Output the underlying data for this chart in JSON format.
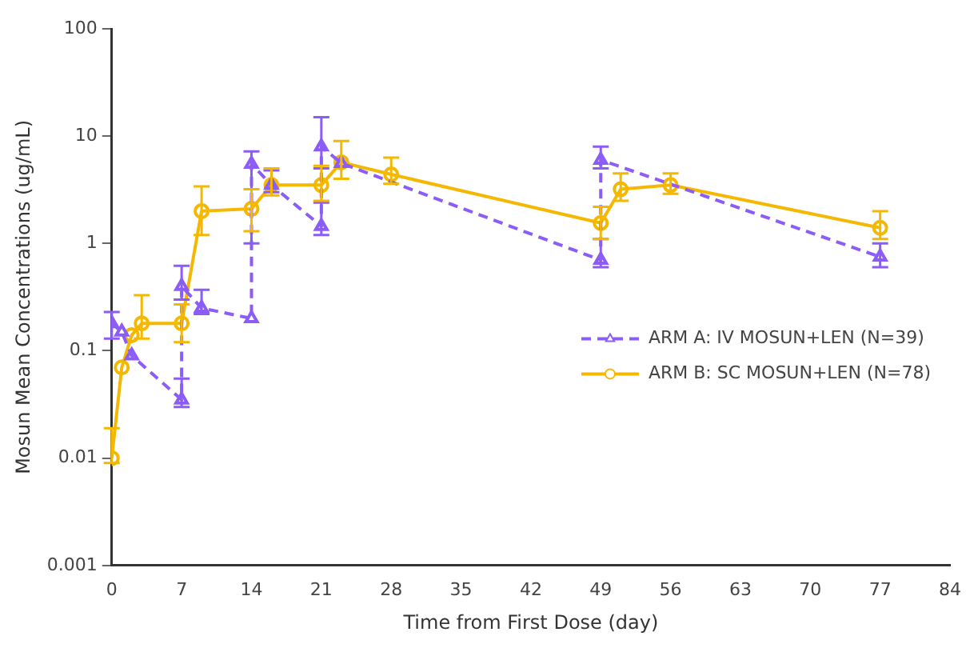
{
  "chart_data": {
    "type": "line",
    "xlabel": "Time from First Dose (day)",
    "ylabel": "Mosun Mean Concentrations (ug/mL)",
    "log": "y",
    "xlim": [
      0,
      84
    ],
    "xticks": [
      0,
      7,
      14,
      21,
      28,
      35,
      42,
      49,
      56,
      63,
      70,
      77,
      84
    ],
    "ylim": [
      0.001,
      100
    ],
    "yticks": [
      0.001,
      0.01,
      0.1,
      1,
      10,
      100
    ],
    "grid": false,
    "legend": "right",
    "series": [
      {
        "name": "ARM A: IV MOSUN+LEN (N=39)",
        "color": "#8b5cf6",
        "marker": "triangle",
        "line_style": "dashed",
        "x": [
          0,
          1,
          2,
          7,
          7,
          9,
          14,
          14,
          16,
          21,
          21,
          23,
          49,
          49,
          77
        ],
        "values": [
          0.18,
          0.15,
          0.09,
          0.035,
          0.4,
          0.25,
          0.2,
          5.5,
          3.5,
          1.45,
          8,
          5.6,
          0.7,
          6,
          0.75
        ],
        "errors": [
          [
            0.13,
            0.23
          ],
          null,
          null,
          [
            0.03,
            0.055
          ],
          [
            0.3,
            0.62
          ],
          [
            0.22,
            0.37
          ],
          null,
          [
            1,
            7.2
          ],
          [
            3,
            4.8
          ],
          [
            1.2,
            2.4
          ],
          [
            5,
            15
          ],
          null,
          [
            0.6,
            1.1
          ],
          [
            5,
            8
          ],
          [
            0.6,
            1
          ]
        ]
      },
      {
        "name": "ARM B: SC MOSUN+LEN (N=78)",
        "color": "#f5b800",
        "marker": "circle",
        "line_style": "solid",
        "x": [
          0,
          1,
          2,
          3,
          7,
          9,
          14,
          16,
          21,
          23,
          28,
          49,
          51,
          56,
          77
        ],
        "values": [
          0.01,
          0.07,
          0.14,
          0.18,
          0.18,
          2,
          2.1,
          3.5,
          3.5,
          5.7,
          4.4,
          1.55,
          3.2,
          3.5,
          1.4
        ],
        "errors": [
          [
            0.009,
            0.019
          ],
          null,
          null,
          [
            0.13,
            0.33
          ],
          [
            0.12,
            0.27
          ],
          [
            1.2,
            3.4
          ],
          [
            1.3,
            3.2
          ],
          [
            2.8,
            5
          ],
          [
            2.5,
            5.3
          ],
          [
            4,
            9
          ],
          [
            3.6,
            6.3
          ],
          [
            1.1,
            2.2
          ],
          [
            2.5,
            4.5
          ],
          [
            2.9,
            4.5
          ],
          [
            1.1,
            2
          ]
        ]
      }
    ]
  }
}
